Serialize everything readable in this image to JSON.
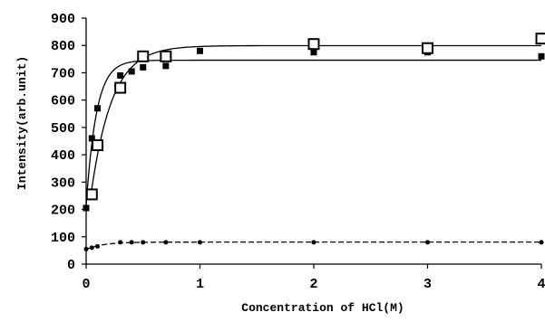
{
  "chart_data": {
    "type": "scatter",
    "title": "",
    "xlabel": "Concentration of HCl(M)",
    "ylabel": "Intensity(arb.unit)",
    "xlim": [
      0,
      4
    ],
    "ylim": [
      0,
      900
    ],
    "x_ticks": [
      "0",
      "1",
      "2",
      "3",
      "4"
    ],
    "y_ticks": [
      "0",
      "100",
      "200",
      "300",
      "400",
      "500",
      "600",
      "700",
      "800",
      "900"
    ],
    "grid": false,
    "legend": "none",
    "series": [
      {
        "marker": "filled-square",
        "color": "#000000",
        "x": [
          0,
          0.05,
          0.1,
          0.3,
          0.4,
          0.5,
          0.7,
          1.0,
          2.0,
          3.0,
          4.0
        ],
        "y": [
          205,
          460,
          570,
          690,
          705,
          720,
          725,
          780,
          775,
          775,
          760
        ]
      },
      {
        "marker": "open-square",
        "color": "#000000",
        "x": [
          0.05,
          0.1,
          0.3,
          0.5,
          0.7,
          2.0,
          3.0,
          4.0
        ],
        "y": [
          255,
          435,
          645,
          760,
          760,
          805,
          790,
          825
        ]
      },
      {
        "marker": "small-dot",
        "color": "#000000",
        "x": [
          0,
          0.05,
          0.1,
          0.3,
          0.4,
          0.5,
          0.7,
          1.0,
          2.0,
          3.0,
          4.0
        ],
        "y": [
          55,
          60,
          65,
          80,
          80,
          80,
          80,
          80,
          80,
          80,
          80
        ]
      }
    ]
  }
}
